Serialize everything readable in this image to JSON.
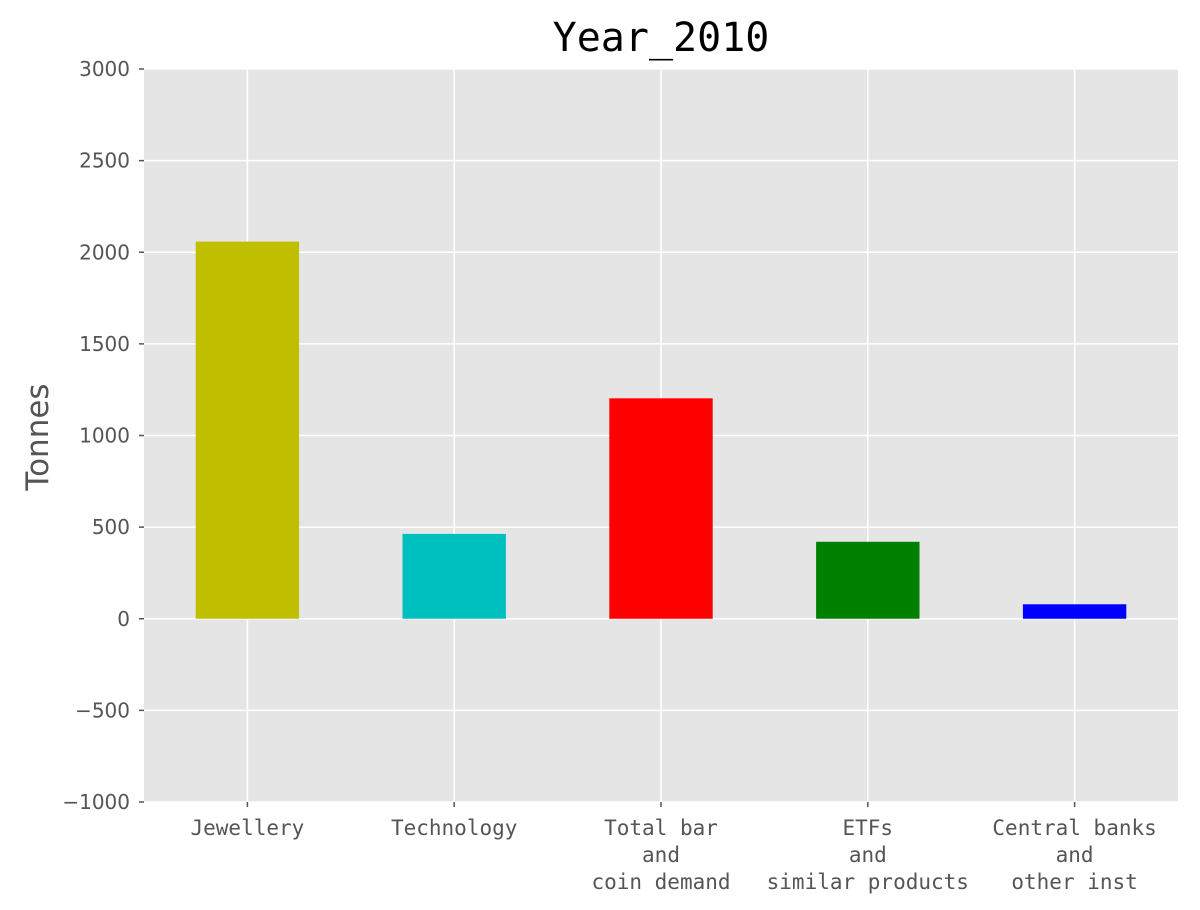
{
  "chart_data": {
    "type": "bar",
    "title": "Year_2010",
    "xlabel": "",
    "ylabel": "Tonnes",
    "ylim": [
      -1000,
      3000
    ],
    "yticks": [
      -1000,
      -500,
      0,
      500,
      1000,
      1500,
      2000,
      2500,
      3000
    ],
    "ytick_labels": [
      "−1000",
      "−500",
      "0",
      "500",
      "1000",
      "1500",
      "2000",
      "2500",
      "3000"
    ],
    "categories": [
      [
        "Jewellery"
      ],
      [
        "Technology"
      ],
      [
        "Total bar",
        "and",
        "coin demand"
      ],
      [
        "ETFs",
        "and",
        "similar products"
      ],
      [
        "Central banks",
        "and",
        "other inst"
      ]
    ],
    "values": [
      2058,
      463,
      1203,
      420,
      79
    ],
    "colors": [
      "#bfbf00",
      "#00bfbf",
      "#ff0000",
      "#008000",
      "#0000ff"
    ],
    "grid": true,
    "plot_background": "#e5e5e5",
    "grid_color": "#ffffff"
  }
}
